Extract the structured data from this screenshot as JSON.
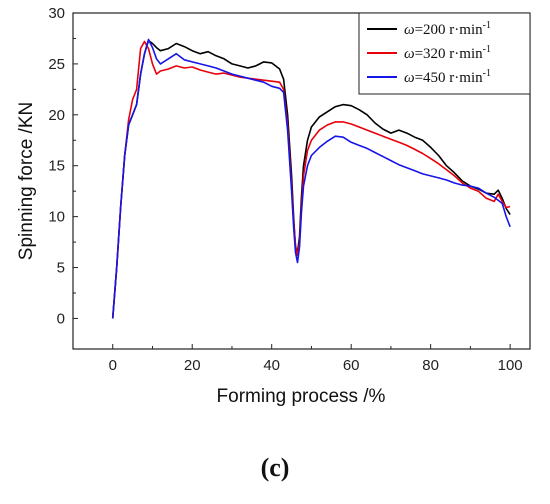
{
  "panel_label": "(c)",
  "chart_data": {
    "type": "line",
    "xlabel": "Forming process /%",
    "ylabel": "Spinning force /KN",
    "xlim": [
      -10,
      105
    ],
    "ylim": [
      -3,
      30
    ],
    "xticks": [
      0,
      20,
      40,
      60,
      80,
      100
    ],
    "yticks": [
      0,
      5,
      10,
      15,
      20,
      25,
      30
    ],
    "legend_position": "top-right",
    "grid": false,
    "series": [
      {
        "name": "ω=200 r·min⁻¹",
        "omega_symbol": "ω",
        "value_text": "=200 r·min",
        "unit_superscript": "-1",
        "color": "#000000",
        "points": [
          [
            0,
            0
          ],
          [
            0.5,
            2.5
          ],
          [
            1,
            5
          ],
          [
            2,
            11
          ],
          [
            3,
            16
          ],
          [
            4,
            19
          ],
          [
            5,
            20
          ],
          [
            6,
            21
          ],
          [
            7,
            24
          ],
          [
            8,
            26
          ],
          [
            9,
            27.3
          ],
          [
            10,
            27
          ],
          [
            11,
            26.6
          ],
          [
            12,
            26.3
          ],
          [
            14,
            26.5
          ],
          [
            16,
            27
          ],
          [
            18,
            26.7
          ],
          [
            20,
            26.3
          ],
          [
            22,
            26
          ],
          [
            24,
            26.2
          ],
          [
            26,
            25.8
          ],
          [
            28,
            25.5
          ],
          [
            30,
            25
          ],
          [
            32,
            24.8
          ],
          [
            34,
            24.6
          ],
          [
            36,
            24.8
          ],
          [
            38,
            25.2
          ],
          [
            40,
            25.1
          ],
          [
            42,
            24.5
          ],
          [
            43,
            23.5
          ],
          [
            44,
            20
          ],
          [
            45,
            14
          ],
          [
            45.5,
            10
          ],
          [
            46,
            7
          ],
          [
            46.5,
            6.5
          ],
          [
            47,
            8
          ],
          [
            47.5,
            12
          ],
          [
            48,
            15
          ],
          [
            49,
            17.5
          ],
          [
            50,
            18.8
          ],
          [
            52,
            19.8
          ],
          [
            54,
            20.3
          ],
          [
            56,
            20.8
          ],
          [
            58,
            21
          ],
          [
            60,
            20.9
          ],
          [
            62,
            20.5
          ],
          [
            64,
            20
          ],
          [
            66,
            19.2
          ],
          [
            68,
            18.6
          ],
          [
            70,
            18.2
          ],
          [
            72,
            18.5
          ],
          [
            74,
            18.2
          ],
          [
            76,
            17.8
          ],
          [
            78,
            17.5
          ],
          [
            80,
            16.8
          ],
          [
            82,
            16
          ],
          [
            84,
            15
          ],
          [
            86,
            14.3
          ],
          [
            88,
            13.5
          ],
          [
            90,
            13
          ],
          [
            92,
            12.7
          ],
          [
            94,
            12.3
          ],
          [
            96,
            12.2
          ],
          [
            97,
            12.6
          ],
          [
            98,
            11.8
          ],
          [
            99,
            10.8
          ],
          [
            100,
            10.2
          ]
        ]
      },
      {
        "name": "ω=320 r·min⁻¹",
        "omega_symbol": "ω",
        "value_text": "=320 r·min",
        "unit_superscript": "-1",
        "color": "#e8000b",
        "points": [
          [
            0,
            0
          ],
          [
            0.5,
            2.5
          ],
          [
            1,
            5
          ],
          [
            2,
            11
          ],
          [
            3,
            16
          ],
          [
            4,
            19.5
          ],
          [
            5,
            21.5
          ],
          [
            6,
            22.5
          ],
          [
            7,
            26.5
          ],
          [
            8,
            27.2
          ],
          [
            9,
            26.5
          ],
          [
            10,
            25
          ],
          [
            11,
            24
          ],
          [
            12,
            24.3
          ],
          [
            14,
            24.5
          ],
          [
            16,
            24.8
          ],
          [
            18,
            24.6
          ],
          [
            20,
            24.7
          ],
          [
            22,
            24.4
          ],
          [
            24,
            24.2
          ],
          [
            26,
            24
          ],
          [
            28,
            24.1
          ],
          [
            30,
            23.9
          ],
          [
            32,
            23.7
          ],
          [
            34,
            23.6
          ],
          [
            36,
            23.5
          ],
          [
            38,
            23.4
          ],
          [
            40,
            23.3
          ],
          [
            42,
            23.2
          ],
          [
            43,
            22.5
          ],
          [
            44,
            19
          ],
          [
            45,
            13
          ],
          [
            45.5,
            9.5
          ],
          [
            46,
            7.2
          ],
          [
            46.5,
            6.2
          ],
          [
            47,
            7.5
          ],
          [
            47.5,
            11
          ],
          [
            48,
            14
          ],
          [
            49,
            16.5
          ],
          [
            50,
            17.5
          ],
          [
            52,
            18.5
          ],
          [
            54,
            19
          ],
          [
            56,
            19.3
          ],
          [
            58,
            19.3
          ],
          [
            60,
            19.1
          ],
          [
            62,
            18.8
          ],
          [
            64,
            18.5
          ],
          [
            66,
            18.2
          ],
          [
            68,
            17.9
          ],
          [
            70,
            17.6
          ],
          [
            72,
            17.3
          ],
          [
            74,
            17
          ],
          [
            76,
            16.6
          ],
          [
            78,
            16.2
          ],
          [
            80,
            15.7
          ],
          [
            82,
            15.2
          ],
          [
            84,
            14.6
          ],
          [
            86,
            14
          ],
          [
            88,
            13.3
          ],
          [
            90,
            12.8
          ],
          [
            92,
            12.5
          ],
          [
            94,
            11.8
          ],
          [
            96,
            11.5
          ],
          [
            97,
            12.2
          ],
          [
            98,
            11.5
          ],
          [
            99,
            10.9
          ],
          [
            100,
            11
          ]
        ]
      },
      {
        "name": "ω=450 r·min⁻¹",
        "omega_symbol": "ω",
        "value_text": "=450 r·min",
        "unit_superscript": "-1",
        "color": "#1515e8",
        "points": [
          [
            0,
            0
          ],
          [
            0.5,
            2.5
          ],
          [
            1,
            5
          ],
          [
            2,
            11
          ],
          [
            3,
            16
          ],
          [
            4,
            19
          ],
          [
            5,
            20
          ],
          [
            6,
            21
          ],
          [
            7,
            24
          ],
          [
            8,
            26
          ],
          [
            9,
            27.4
          ],
          [
            10,
            26.6
          ],
          [
            11,
            25.5
          ],
          [
            12,
            25
          ],
          [
            14,
            25.5
          ],
          [
            16,
            26
          ],
          [
            18,
            25.4
          ],
          [
            20,
            25.2
          ],
          [
            22,
            25
          ],
          [
            24,
            24.8
          ],
          [
            26,
            24.6
          ],
          [
            28,
            24.3
          ],
          [
            30,
            24
          ],
          [
            32,
            23.8
          ],
          [
            34,
            23.6
          ],
          [
            36,
            23.4
          ],
          [
            38,
            23.2
          ],
          [
            40,
            22.8
          ],
          [
            42,
            22.6
          ],
          [
            43,
            22.2
          ],
          [
            44,
            18.5
          ],
          [
            45,
            12.5
          ],
          [
            45.5,
            9
          ],
          [
            46,
            6.5
          ],
          [
            46.5,
            5.5
          ],
          [
            47,
            7
          ],
          [
            47.5,
            10.5
          ],
          [
            48,
            13
          ],
          [
            49,
            15
          ],
          [
            50,
            16
          ],
          [
            52,
            16.8
          ],
          [
            54,
            17.4
          ],
          [
            56,
            17.9
          ],
          [
            58,
            17.8
          ],
          [
            60,
            17.3
          ],
          [
            62,
            17
          ],
          [
            64,
            16.7
          ],
          [
            66,
            16.3
          ],
          [
            68,
            15.9
          ],
          [
            70,
            15.5
          ],
          [
            72,
            15.1
          ],
          [
            74,
            14.8
          ],
          [
            76,
            14.5
          ],
          [
            78,
            14.2
          ],
          [
            80,
            14
          ],
          [
            82,
            13.8
          ],
          [
            84,
            13.6
          ],
          [
            86,
            13.3
          ],
          [
            88,
            13.1
          ],
          [
            90,
            13
          ],
          [
            92,
            12.8
          ],
          [
            94,
            12.3
          ],
          [
            96,
            11.9
          ],
          [
            98,
            11.3
          ],
          [
            99,
            10
          ],
          [
            100,
            9
          ]
        ]
      }
    ]
  }
}
